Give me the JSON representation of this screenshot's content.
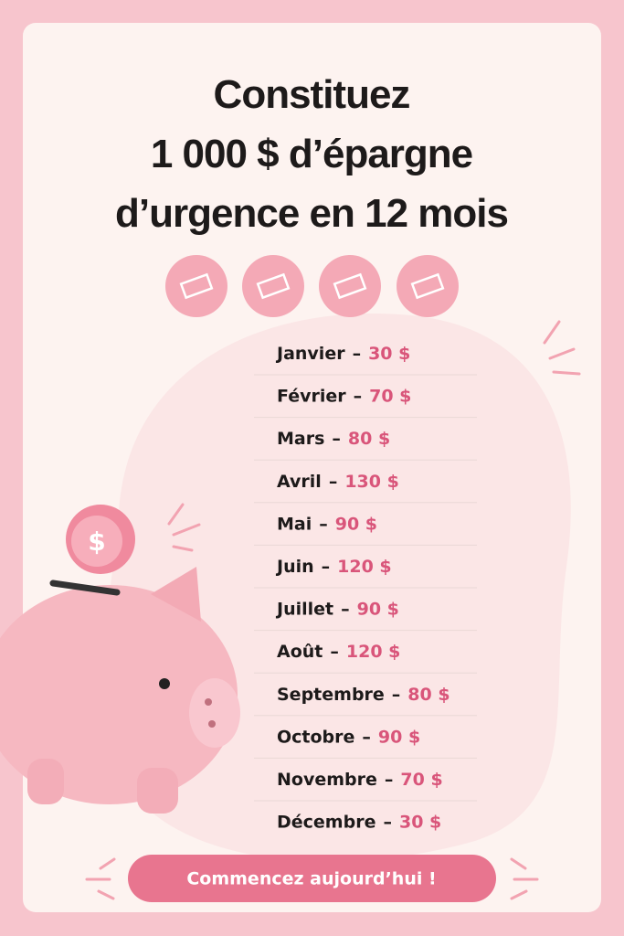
{
  "header": {
    "title_lines": [
      "Constituez",
      "1 000 $ d’épargne",
      "d’urgence en 12 mois"
    ]
  },
  "list": {
    "separator": "–",
    "items": [
      {
        "month": "Janvier",
        "amount": "30 $"
      },
      {
        "month": "Février",
        "amount": "70 $"
      },
      {
        "month": "Mars",
        "amount": "80 $"
      },
      {
        "month": "Avril",
        "amount": "130 $"
      },
      {
        "month": "Mai",
        "amount": "90 $"
      },
      {
        "month": "Juin",
        "amount": "120 $"
      },
      {
        "month": "Juillet",
        "amount": "90 $"
      },
      {
        "month": "Août",
        "amount": "120 $"
      },
      {
        "month": "Septembre",
        "amount": "80 $"
      },
      {
        "month": "Octobre",
        "amount": "90 $"
      },
      {
        "month": "Novembre",
        "amount": "70 $"
      },
      {
        "month": "Décembre",
        "amount": "30 $"
      }
    ]
  },
  "coin": {
    "symbol": "$"
  },
  "button": {
    "label": "Commencez aujourd’hui !"
  }
}
